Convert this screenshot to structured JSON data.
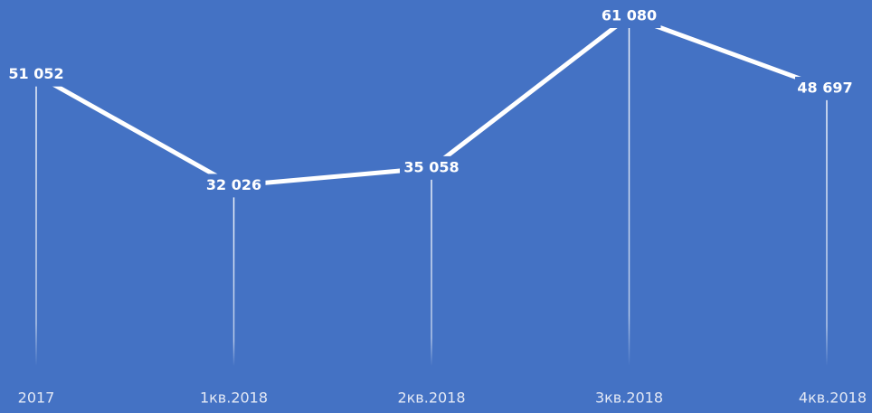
{
  "chart_data": {
    "type": "line",
    "categories": [
      "2017",
      "1кв.2018",
      "2кв.2018",
      "3кв.2018",
      "4кв.2018"
    ],
    "series": [
      {
        "color": "#ffffff",
        "values": [
          51052,
          32026,
          35058,
          61080,
          48697
        ],
        "value_labels": [
          "51 052",
          "32 026",
          "35 058",
          "61 080",
          "48 697"
        ]
      }
    ],
    "drop_lines": true
  }
}
